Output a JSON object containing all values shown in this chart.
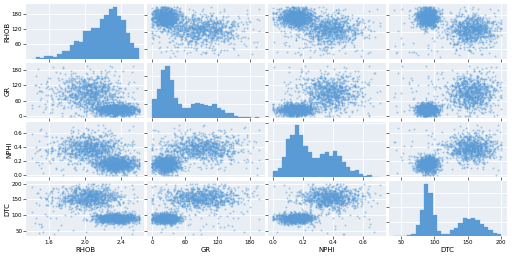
{
  "variables": [
    "RHOB",
    "GR",
    "NPHI",
    "DTC"
  ],
  "n_samples": 2000,
  "scatter_color": "#5B9BD5",
  "hist_color": "#5B9BD5",
  "background_color": "#E8EEF4",
  "grid_color": "white",
  "dot_size": 2,
  "dot_alpha": 0.5,
  "hist_bins": 25,
  "hist_edgecolor": "#5B9BD5",
  "tick_fontsize": 4,
  "label_fontsize": 5
}
